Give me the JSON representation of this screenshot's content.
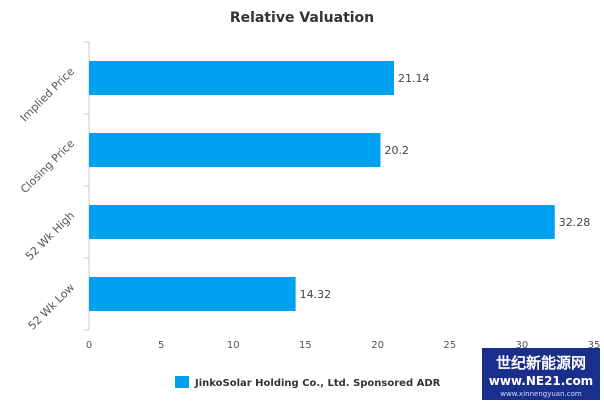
{
  "chart_data": {
    "type": "bar",
    "orientation": "horizontal",
    "title": "Relative Valuation",
    "categories": [
      "Implied Price",
      "Closing Price",
      "52 Wk High",
      "52 Wk Low"
    ],
    "series": [
      {
        "name": "JinkoSolar Holding Co., Ltd. Sponsored ADR",
        "values": [
          21.14,
          20.2,
          32.28,
          14.32
        ],
        "color": "#00A0F0"
      }
    ],
    "data_labels": [
      "21.14",
      "20.2",
      "32.28",
      "14.32"
    ],
    "xlim": [
      0,
      35
    ],
    "xticks": [
      "0",
      "5",
      "10",
      "15",
      "20",
      "25",
      "30",
      "35"
    ],
    "xlabel": "",
    "ylabel": "",
    "grid": false,
    "legend_position": "bottom"
  },
  "watermark": {
    "line1": "世纪新能源网",
    "line2": "www.NE21.com",
    "line3": "www.xinnengyuan.com",
    "color": "#1a2f8c"
  }
}
